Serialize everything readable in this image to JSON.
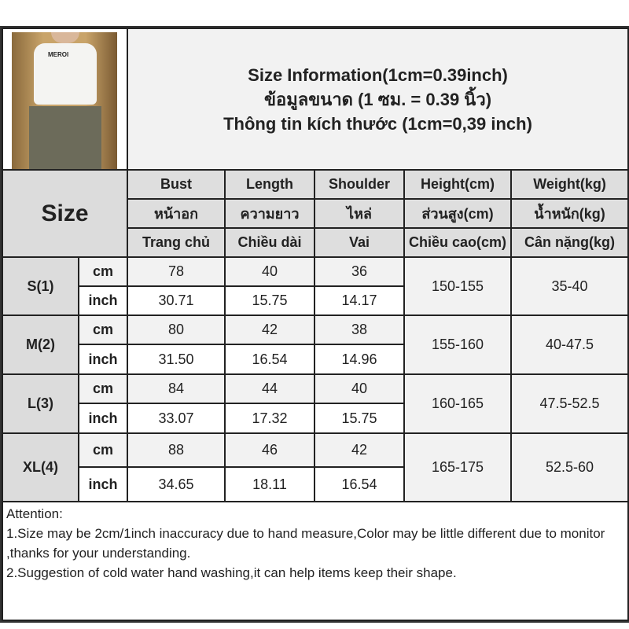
{
  "title_lines": [
    "Size Information(1cm=0.39inch)",
    "ข้อมูลขนาด (1 ซม. = 0.39 นิ้ว)",
    "Thông tin kích thước (1cm=0,39 inch)"
  ],
  "photo_logo": "MEROI",
  "size_label": "Size",
  "headers": [
    [
      "Bust",
      "หน้าอก",
      "Trang chủ"
    ],
    [
      "Length",
      "ความยาว",
      "Chiều dài"
    ],
    [
      "Shoulder",
      "ไหล่",
      "Vai"
    ],
    [
      "Height(cm)",
      "ส่วนสูง(cm)",
      "Chiều cao(cm)"
    ],
    [
      "Weight(kg)",
      "น้ำหนัก(kg)",
      "Cân nặng(kg)"
    ]
  ],
  "units": {
    "cm": "cm",
    "inch": "inch"
  },
  "rows": [
    {
      "size": "S(1)",
      "cm": [
        "78",
        "40",
        "36"
      ],
      "inch": [
        "30.71",
        "15.75",
        "14.17"
      ],
      "height": "150-155",
      "weight": "35-40"
    },
    {
      "size": "M(2)",
      "cm": [
        "80",
        "42",
        "38"
      ],
      "inch": [
        "31.50",
        "16.54",
        "14.96"
      ],
      "height": "155-160",
      "weight": "40-47.5"
    },
    {
      "size": "L(3)",
      "cm": [
        "84",
        "44",
        "40"
      ],
      "inch": [
        "33.07",
        "17.32",
        "15.75"
      ],
      "height": "160-165",
      "weight": "47.5-52.5"
    },
    {
      "size": "XL(4)",
      "cm": [
        "88",
        "46",
        "42"
      ],
      "inch": [
        "34.65",
        "18.11",
        "16.54"
      ],
      "height": "165-175",
      "weight": "52.5-60"
    }
  ],
  "attention": {
    "heading": "Attention:",
    "lines": [
      "1.Size may be 2cm/1inch inaccuracy due to hand measure,Color may be little different due to monitor ,thanks for your understanding.",
      "2.Suggestion of cold water hand washing,it can help items keep their shape."
    ]
  }
}
